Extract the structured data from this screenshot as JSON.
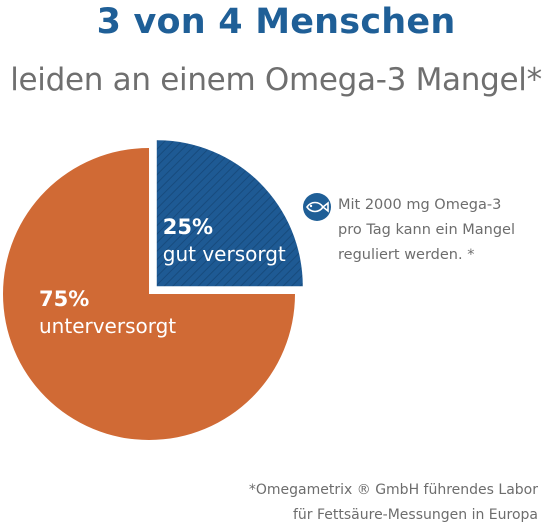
{
  "header": {
    "title": "3 von 4 Menschen",
    "subtitle": "leiden an einem Omega-3 Mangel*"
  },
  "chart_data": {
    "type": "pie",
    "slices": [
      {
        "pct": "25%",
        "label": "gut versorgt",
        "value": 25,
        "color": "#1e5a94",
        "exploded": true,
        "hatched": true
      },
      {
        "pct": "75%",
        "label": "unterversorgt",
        "value": 75,
        "color": "#d06a35",
        "exploded": false,
        "hatched": false
      }
    ]
  },
  "note": {
    "icon": "fish-icon",
    "lines": [
      "Mit 2000 mg Omega-3",
      "pro Tag kann ein Mangel",
      "reguliert werden. *"
    ]
  },
  "footnote": {
    "lines": [
      "*Omegametrix ® GmbH führendes Labor",
      "für Fettsäure-Messungen in Europa"
    ]
  }
}
